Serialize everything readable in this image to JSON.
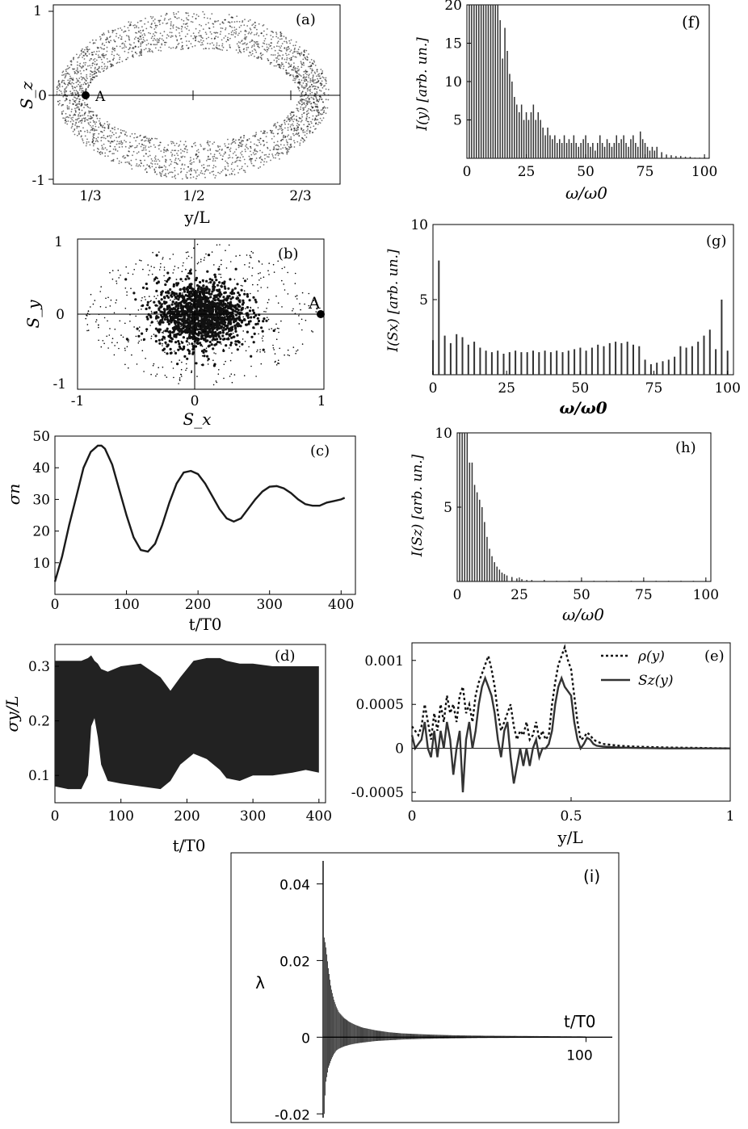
{
  "colors": {
    "ink": "#000000",
    "dark": "#1a1a1a",
    "fill": "#222222",
    "gray": "#555555"
  },
  "chart_data": [
    {
      "id": "a",
      "panel_label": "(a)",
      "type": "scatter",
      "xlabel": "y/L",
      "ylabel": "S_z",
      "xticks": [
        "1/3",
        "1/2",
        "2/3"
      ],
      "yticks": [
        "-1",
        "0",
        "1"
      ],
      "ylim": [
        -1,
        1
      ],
      "annotation": "A",
      "description_ring": "dense elliptical ring of trajectory points from y/L≈1/3 to y/L≈2/3"
    },
    {
      "id": "b",
      "panel_label": "(b)",
      "type": "scatter",
      "xlabel": "S_x",
      "ylabel": "S_y",
      "xticks": [
        "-1",
        "0",
        "1"
      ],
      "yticks": [
        "-1",
        "0",
        "1"
      ],
      "xlim": [
        -1,
        1
      ],
      "ylim": [
        -1,
        1
      ],
      "annotation": "A",
      "point_A": [
        1,
        0
      ]
    },
    {
      "id": "c",
      "panel_label": "(c)",
      "type": "line",
      "xlabel": "t/T0",
      "ylabel": "σn",
      "xticks": [
        0,
        100,
        200,
        300,
        400
      ],
      "yticks": [
        10,
        20,
        30,
        40,
        50
      ],
      "xlim": [
        0,
        420
      ],
      "ylim": [
        0,
        50
      ],
      "x": [
        0,
        10,
        20,
        30,
        40,
        50,
        60,
        65,
        70,
        80,
        90,
        100,
        110,
        120,
        130,
        140,
        150,
        160,
        170,
        180,
        190,
        200,
        210,
        220,
        230,
        240,
        250,
        260,
        270,
        280,
        290,
        300,
        310,
        320,
        330,
        340,
        350,
        360,
        370,
        380,
        390,
        400,
        405
      ],
      "values": [
        4,
        12,
        22,
        31,
        40,
        45,
        47,
        47,
        46,
        41,
        33,
        25,
        18,
        14,
        13.5,
        16,
        22,
        29,
        35,
        38.5,
        39,
        38,
        35,
        31,
        27,
        24,
        23,
        24,
        27,
        30,
        32.5,
        34,
        34.2,
        33.5,
        32,
        30,
        28.5,
        28,
        28,
        29,
        29.5,
        30,
        30.5
      ]
    },
    {
      "id": "d",
      "panel_label": "(d)",
      "type": "area",
      "xlabel": "t/T0",
      "ylabel": "σy/L",
      "xticks": [
        0,
        100,
        200,
        300,
        400
      ],
      "yticks": [
        0.1,
        0.2,
        0.3
      ],
      "xlim": [
        0,
        410
      ],
      "ylim": [
        0.05,
        0.34
      ],
      "x": [
        0,
        20,
        40,
        50,
        55,
        60,
        65,
        70,
        80,
        100,
        130,
        160,
        175,
        190,
        210,
        230,
        250,
        260,
        280,
        300,
        330,
        360,
        380,
        400
      ],
      "upper": [
        0.31,
        0.31,
        0.31,
        0.315,
        0.32,
        0.31,
        0.305,
        0.295,
        0.29,
        0.3,
        0.305,
        0.28,
        0.255,
        0.28,
        0.31,
        0.315,
        0.315,
        0.31,
        0.305,
        0.305,
        0.3,
        0.3,
        0.3,
        0.3
      ],
      "lower": [
        0.08,
        0.075,
        0.075,
        0.1,
        0.19,
        0.205,
        0.17,
        0.12,
        0.09,
        0.085,
        0.08,
        0.075,
        0.09,
        0.12,
        0.14,
        0.13,
        0.11,
        0.095,
        0.09,
        0.1,
        0.1,
        0.105,
        0.11,
        0.105
      ]
    },
    {
      "id": "e",
      "panel_label": "(e)",
      "type": "line",
      "xlabel": "y/L",
      "xticks": [
        0,
        0.5,
        1
      ],
      "yticks": [
        "-0.0005",
        "0",
        "0.0005",
        "0.001"
      ],
      "xlim": [
        0,
        1
      ],
      "ylim": [
        -0.0006,
        0.0012
      ],
      "series": [
        {
          "name": "ρ(y)",
          "style": "dotted",
          "x": [
            0,
            0.01,
            0.02,
            0.03,
            0.04,
            0.05,
            0.06,
            0.07,
            0.08,
            0.09,
            0.1,
            0.11,
            0.12,
            0.13,
            0.14,
            0.15,
            0.16,
            0.17,
            0.18,
            0.19,
            0.2,
            0.21,
            0.22,
            0.23,
            0.24,
            0.25,
            0.26,
            0.27,
            0.28,
            0.29,
            0.3,
            0.31,
            0.32,
            0.33,
            0.34,
            0.35,
            0.36,
            0.37,
            0.38,
            0.39,
            0.4,
            0.41,
            0.42,
            0.43,
            0.44,
            0.45,
            0.46,
            0.47,
            0.48,
            0.49,
            0.5,
            0.51,
            0.52,
            0.53,
            0.54,
            0.55,
            0.56,
            0.57,
            0.58,
            0.6,
            0.65,
            0.7,
            0.8,
            0.9,
            1.0
          ],
          "values": [
            0.00025,
            0.0002,
            0.00015,
            0.00025,
            0.0005,
            0.0003,
            0.0001,
            0.0004,
            0.0002,
            0.0005,
            0.0003,
            0.0006,
            0.0004,
            0.0005,
            0.0003,
            0.0006,
            0.0007,
            0.0004,
            0.0005,
            0.0003,
            0.0006,
            0.00075,
            0.00085,
            0.00095,
            0.00105,
            0.0009,
            0.0007,
            0.0004,
            0.0002,
            0.0003,
            0.0004,
            0.0005,
            0.00025,
            0.0001,
            0.0002,
            0.00015,
            0.0003,
            0.0001,
            0.00015,
            0.0003,
            0.0001,
            0.0002,
            0.0001,
            0.00015,
            0.0005,
            0.00075,
            0.00095,
            0.00105,
            0.00115,
            0.001,
            0.0009,
            0.0006,
            0.0003,
            0.0001,
            0.00012,
            0.00018,
            0.00015,
            0.0001,
            8e-05,
            5e-05,
            3e-05,
            2e-05,
            1e-05,
            5e-06,
            0
          ]
        },
        {
          "name": "Sz(y)",
          "style": "solid",
          "x": [
            0,
            0.01,
            0.02,
            0.03,
            0.04,
            0.05,
            0.06,
            0.07,
            0.08,
            0.09,
            0.1,
            0.11,
            0.12,
            0.13,
            0.14,
            0.15,
            0.16,
            0.17,
            0.18,
            0.19,
            0.2,
            0.21,
            0.22,
            0.23,
            0.24,
            0.25,
            0.26,
            0.27,
            0.28,
            0.29,
            0.3,
            0.31,
            0.32,
            0.33,
            0.34,
            0.35,
            0.36,
            0.37,
            0.38,
            0.39,
            0.4,
            0.41,
            0.42,
            0.43,
            0.44,
            0.45,
            0.46,
            0.47,
            0.48,
            0.49,
            0.5,
            0.51,
            0.52,
            0.53,
            0.54,
            0.55,
            0.56,
            0.57,
            0.58,
            0.6,
            0.65,
            0.7,
            0.8,
            0.9,
            1.0
          ],
          "values": [
            0.00015,
            0.0,
            5e-05,
            0.0001,
            0.0003,
            0.0,
            -0.0001,
            0.0002,
            -0.0001,
            0.0002,
            0.0,
            0.0003,
            0.0001,
            -0.0003,
            0.0,
            0.0002,
            -0.0005,
            0.0001,
            0.0003,
            0.0,
            0.0002,
            0.0005,
            0.0007,
            0.0008,
            0.0007,
            0.0006,
            0.0004,
            0.0001,
            -0.0001,
            0.0002,
            0.0003,
            -0.0001,
            -0.0004,
            -0.0002,
            0.0,
            -0.0002,
            0.0,
            -0.0002,
            0.0,
            0.0001,
            -0.0001,
            0.0,
            0.0,
            5e-05,
            0.0002,
            0.0005,
            0.0007,
            0.0008,
            0.0007,
            0.00065,
            0.0006,
            0.0003,
            0.0001,
            0.0,
            5e-05,
            0.00012,
            0.0001,
            5e-05,
            3e-05,
            2e-05,
            1e-05,
            5e-06,
            0,
            0,
            0
          ]
        }
      ]
    },
    {
      "id": "f",
      "panel_label": "(f)",
      "type": "bar",
      "xlabel": "ω/ω0",
      "ylabel": "I(y) [arb. un.]",
      "xticks": [
        0,
        25,
        50,
        75,
        100
      ],
      "yticks": [
        5,
        10,
        15,
        20
      ],
      "xlim": [
        0,
        102
      ],
      "ylim": [
        0,
        20
      ],
      "x": [
        1,
        2,
        3,
        4,
        5,
        6,
        7,
        8,
        9,
        10,
        11,
        12,
        13,
        14,
        15,
        16,
        17,
        18,
        19,
        20,
        21,
        22,
        23,
        24,
        25,
        26,
        27,
        28,
        29,
        30,
        31,
        32,
        33,
        34,
        35,
        36,
        37,
        38,
        39,
        40,
        41,
        42,
        43,
        44,
        45,
        46,
        47,
        48,
        49,
        50,
        51,
        52,
        53,
        54,
        55,
        56,
        57,
        58,
        59,
        60,
        61,
        62,
        63,
        64,
        65,
        66,
        67,
        68,
        69,
        70,
        71,
        72,
        73,
        74,
        75,
        76,
        77,
        78,
        79,
        80,
        82,
        84,
        86,
        88,
        90,
        92,
        94,
        96,
        98,
        100
      ],
      "values": [
        20,
        20,
        20,
        20,
        20,
        20,
        20,
        20,
        20,
        20,
        20,
        20,
        20,
        18,
        13,
        17,
        14,
        11,
        10,
        8,
        7,
        6,
        7,
        5,
        6,
        5,
        6,
        7,
        5,
        6,
        5,
        4,
        3,
        4,
        3,
        2.5,
        3,
        2,
        2.5,
        2,
        3,
        2,
        2.5,
        2,
        3,
        2,
        1.5,
        2,
        2.5,
        3,
        2,
        1.5,
        2,
        1,
        2,
        3,
        2,
        1.5,
        2.5,
        2,
        1.5,
        2,
        3,
        2,
        2.5,
        3,
        2,
        1.5,
        2.5,
        3,
        2,
        1.5,
        3.5,
        2.5,
        2,
        1.5,
        1,
        1.5,
        1,
        1.5,
        0.8,
        0.5,
        0.4,
        0.3,
        0.3,
        0.2,
        0.2,
        0.1,
        0.1,
        0.1
      ]
    },
    {
      "id": "g",
      "panel_label": "(g)",
      "type": "bar",
      "xlabel": "ω/ω0",
      "ylabel": "I(Sx) [arb. un.]",
      "xticks": [
        0,
        25,
        50,
        75,
        100
      ],
      "yticks": [
        5,
        10
      ],
      "xlim": [
        0,
        102
      ],
      "ylim": [
        0,
        10
      ],
      "x": [
        0,
        2,
        4,
        6,
        8,
        10,
        12,
        14,
        16,
        18,
        20,
        22,
        24,
        26,
        28,
        30,
        32,
        34,
        36,
        38,
        40,
        42,
        44,
        46,
        48,
        50,
        52,
        54,
        56,
        58,
        60,
        62,
        64,
        66,
        68,
        70,
        72,
        74,
        76,
        78,
        80,
        82,
        84,
        86,
        88,
        90,
        92,
        94,
        96,
        98,
        100
      ],
      "values": [
        2.3,
        7.6,
        2.6,
        2.1,
        2.7,
        2.5,
        2.0,
        2.2,
        1.8,
        1.6,
        1.5,
        1.6,
        1.4,
        1.5,
        1.6,
        1.5,
        1.5,
        1.6,
        1.5,
        1.6,
        1.5,
        1.6,
        1.5,
        1.6,
        1.7,
        1.8,
        1.6,
        1.8,
        2.0,
        1.9,
        2.1,
        2.2,
        2.1,
        2.2,
        2.0,
        1.9,
        1.0,
        0.7,
        0.8,
        0.9,
        1.0,
        1.2,
        1.9,
        1.8,
        1.9,
        2.2,
        2.6,
        3.0,
        1.7,
        5.0,
        1.6
      ]
    },
    {
      "id": "h",
      "panel_label": "(h)",
      "type": "bar",
      "xlabel": "ω/ω0",
      "ylabel": "I(Sz) [arb. un.]",
      "xticks": [
        0,
        25,
        50,
        75,
        100
      ],
      "yticks": [
        5,
        10
      ],
      "xlim": [
        0,
        102
      ],
      "ylim": [
        0,
        10
      ],
      "x": [
        1,
        2,
        3,
        4,
        5,
        6,
        7,
        8,
        9,
        10,
        11,
        12,
        13,
        14,
        15,
        16,
        17,
        18,
        19,
        20,
        22,
        24,
        26,
        28,
        30,
        35,
        40,
        45,
        50,
        55,
        60,
        65,
        70,
        75,
        80,
        85,
        90,
        95,
        100
      ],
      "values": [
        10,
        10,
        10,
        10,
        8,
        8,
        6.5,
        6,
        5.5,
        5,
        4,
        3,
        2.2,
        1.7,
        1.3,
        1.0,
        0.8,
        0.6,
        0.5,
        0.4,
        0.3,
        0.2,
        0.15,
        0.1,
        0.1,
        0.1,
        0.05,
        0.05,
        0.05,
        0.05,
        0.05,
        0.05,
        0.05,
        0.05,
        0.05,
        0.05,
        0.05,
        0.05,
        0.05
      ]
    },
    {
      "id": "i",
      "panel_label": "(i)",
      "type": "bar",
      "xlabel": "t/T0",
      "ylabel": "λ",
      "xticks": [
        100
      ],
      "yticks": [
        "-0.02",
        "0",
        "0.02",
        "0.04"
      ],
      "xlim": [
        0,
        110
      ],
      "ylim": [
        -0.021,
        0.046
      ],
      "envelope_t": [
        0.5,
        1,
        2,
        3,
        4,
        5,
        6,
        8,
        10,
        12,
        15,
        20,
        25,
        30,
        40,
        50,
        60,
        80,
        100
      ],
      "envelope_upper": [
        0.026,
        0.024,
        0.018,
        0.013,
        0.01,
        0.008,
        0.0065,
        0.005,
        0.004,
        0.0033,
        0.0025,
        0.0018,
        0.0013,
        0.001,
        0.0007,
        0.0005,
        0.0004,
        0.0003,
        0.0002
      ],
      "envelope_lower": [
        -0.02,
        -0.012,
        -0.008,
        -0.006,
        -0.0045,
        -0.0035,
        -0.003,
        -0.0024,
        -0.002,
        -0.0017,
        -0.0014,
        -0.001,
        -0.0008,
        -0.0006,
        -0.0004,
        -0.0003,
        -0.0002,
        -0.00015,
        -0.0001
      ]
    }
  ]
}
